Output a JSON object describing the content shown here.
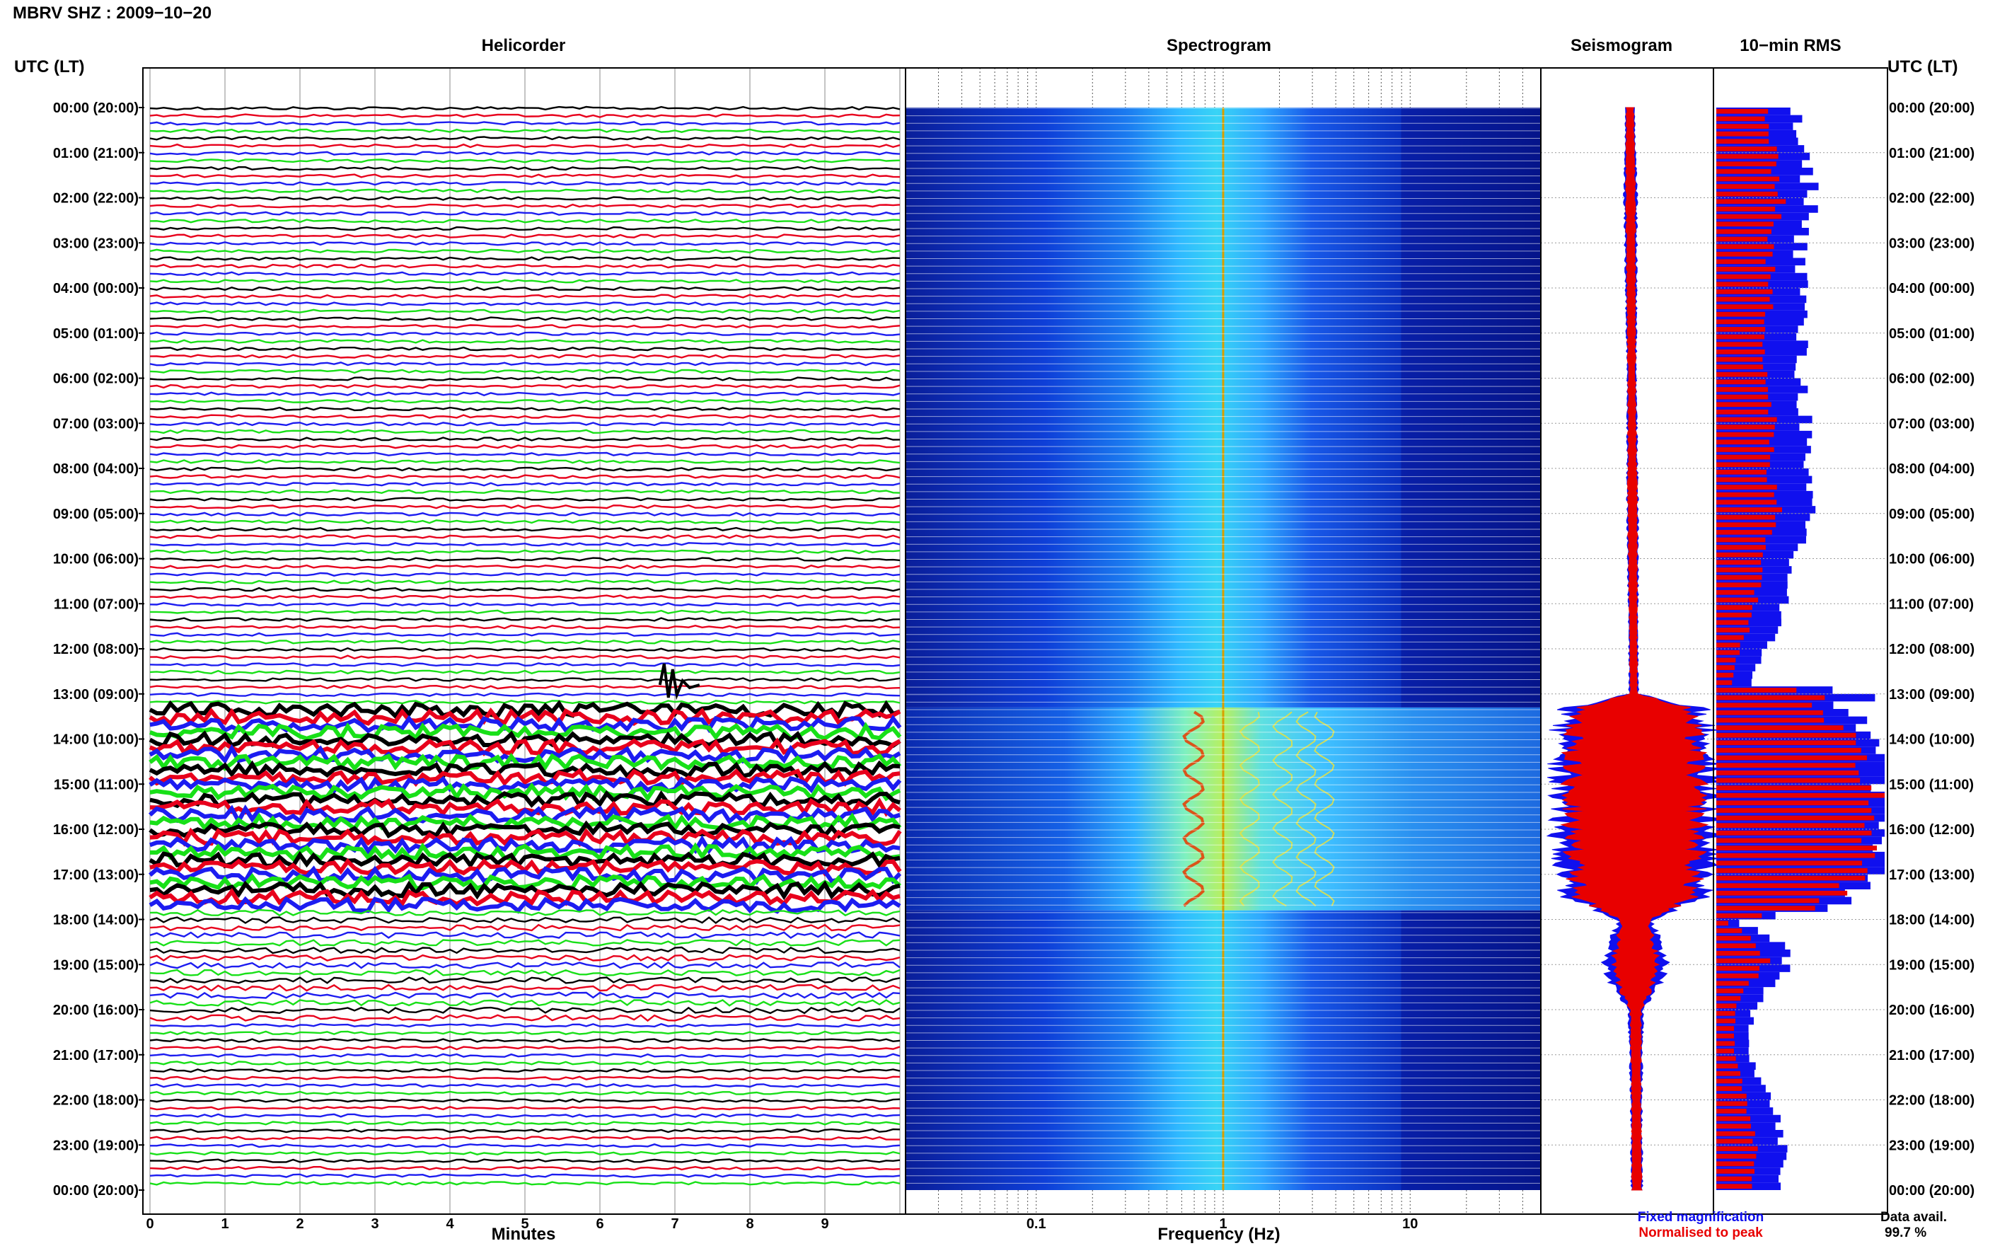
{
  "title": "MBRV SHZ : 2009−10−20",
  "utc_lt_label": "UTC (LT)",
  "colors": {
    "trace_cycle": [
      "#000000",
      "#e8001c",
      "#1c1cf0",
      "#18e018"
    ],
    "fixed": "#1010ee",
    "normalised": "#e80000"
  },
  "legend": {
    "fixed": "Fixed magnification",
    "normalised": "Normalised to peak"
  },
  "data_availability": {
    "label": "Data avail.",
    "value": "99.7 %"
  },
  "chart_data": [
    {
      "type": "line",
      "title": "Helicorder",
      "xlabel": "Minutes",
      "x_ticks": [
        "0",
        "1",
        "2",
        "3",
        "4",
        "5",
        "6",
        "7",
        "8",
        "9"
      ],
      "xlim": [
        0,
        10
      ],
      "y_ticks": [
        "00:00 (20:00)",
        "01:00 (21:00)",
        "02:00 (22:00)",
        "03:00 (23:00)",
        "04:00 (00:00)",
        "05:00 (01:00)",
        "06:00 (02:00)",
        "07:00 (03:00)",
        "08:00 (04:00)",
        "09:00 (05:00)",
        "10:00 (06:00)",
        "11:00 (07:00)",
        "12:00 (08:00)",
        "13:00 (09:00)",
        "14:00 (10:00)",
        "15:00 (11:00)",
        "16:00 (12:00)",
        "17:00 (13:00)",
        "18:00 (14:00)",
        "19:00 (15:00)",
        "20:00 (16:00)",
        "21:00 (17:00)",
        "22:00 (18:00)",
        "23:00 (19:00)",
        "00:00 (20:00)"
      ],
      "lines_per_hour": 6,
      "grid": true
    },
    {
      "type": "heatmap",
      "title": "Spectrogram",
      "xlabel": "Frequency (Hz)",
      "x_scale": "log",
      "xlim": [
        0.02,
        50
      ],
      "x_ticks": [
        "0.1",
        "1",
        "10"
      ],
      "bands": [
        {
          "start_hour": 0,
          "end_hour": 13.0,
          "level": "background"
        },
        {
          "start_hour": 13.3,
          "end_hour": 17.8,
          "level": "tremor"
        },
        {
          "start_hour": 17.8,
          "end_hour": 24,
          "level": "background"
        }
      ],
      "persistent_line_hz": 1.0
    },
    {
      "type": "area",
      "title": "Seismogram",
      "series": [
        {
          "name": "Fixed magnification",
          "hours": [
            0,
            2,
            6,
            9,
            12,
            13,
            13.3,
            14,
            16,
            17.5,
            18,
            19,
            19.5,
            20,
            22,
            24
          ],
          "half_width": [
            0.05,
            0.07,
            0.05,
            0.06,
            0.05,
            0.05,
            0.75,
            0.85,
            0.85,
            0.8,
            0.2,
            0.35,
            0.25,
            0.08,
            0.06,
            0.06
          ]
        },
        {
          "name": "Normalised to peak",
          "hours": [
            0,
            2,
            6,
            9,
            12,
            13,
            13.3,
            14,
            16,
            17.5,
            18,
            19,
            19.5,
            20,
            22,
            24
          ],
          "half_width": [
            0.04,
            0.05,
            0.04,
            0.05,
            0.04,
            0.04,
            0.6,
            0.7,
            0.72,
            0.65,
            0.15,
            0.25,
            0.18,
            0.06,
            0.05,
            0.05
          ]
        }
      ],
      "grid": true
    },
    {
      "type": "bar",
      "title": "10−min RMS",
      "orientation": "horizontal",
      "bins_per_hour": 6,
      "ylim": [
        0,
        1
      ],
      "series": [
        {
          "name": "Fixed magnification",
          "hours": [
            0,
            1,
            2,
            3,
            4,
            5,
            6,
            7,
            8,
            9,
            10,
            11,
            12,
            12.8,
            13,
            13.3,
            14,
            15,
            16,
            17,
            17.8,
            18,
            18.5,
            19,
            19.5,
            20,
            21,
            22,
            23,
            24
          ],
          "values": [
            0.46,
            0.5,
            0.58,
            0.5,
            0.52,
            0.5,
            0.5,
            0.54,
            0.5,
            0.58,
            0.46,
            0.4,
            0.3,
            0.2,
            0.96,
            0.72,
            1.0,
            1.0,
            1.0,
            0.95,
            0.7,
            0.08,
            0.4,
            0.42,
            0.3,
            0.22,
            0.2,
            0.32,
            0.4,
            0.36
          ]
        },
        {
          "name": "Normalised to peak",
          "hours": [
            0,
            1,
            2,
            3,
            4,
            5,
            6,
            7,
            8,
            9,
            10,
            11,
            12,
            12.8,
            13,
            13.3,
            14,
            15,
            16,
            17,
            17.8,
            18,
            18.5,
            19,
            19.5,
            20,
            21,
            22,
            23,
            24
          ],
          "values": [
            0.3,
            0.33,
            0.4,
            0.32,
            0.32,
            0.3,
            0.3,
            0.34,
            0.3,
            0.38,
            0.28,
            0.24,
            0.14,
            0.1,
            0.76,
            0.55,
            0.9,
            0.92,
            0.95,
            0.9,
            0.55,
            0.04,
            0.25,
            0.3,
            0.18,
            0.12,
            0.1,
            0.18,
            0.24,
            0.22
          ]
        }
      ]
    }
  ]
}
